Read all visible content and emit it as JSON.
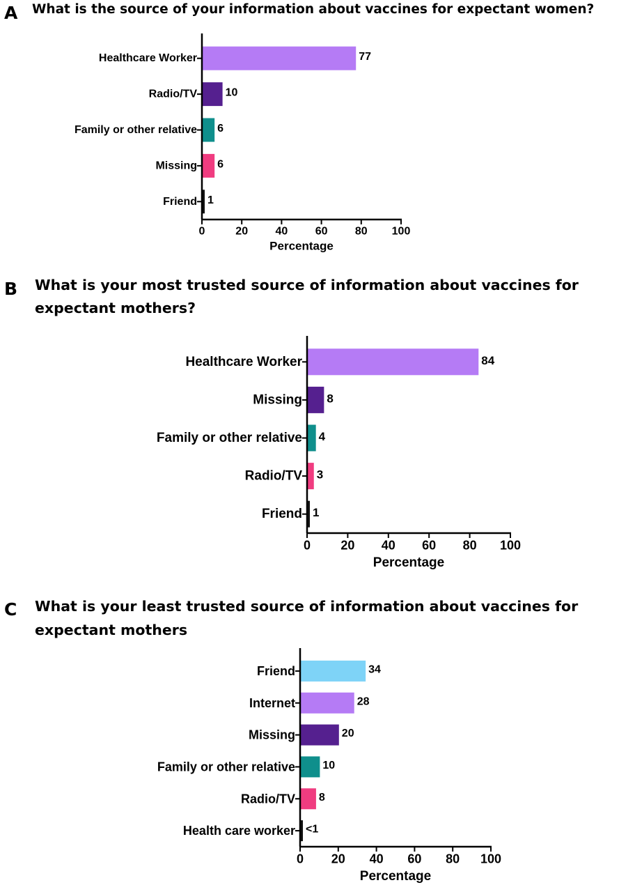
{
  "panels": [
    {
      "letter": "A",
      "title_lines": [
        "What is the source of your information about vaccines for expectant women?"
      ],
      "chart_data": {
        "type": "bar",
        "orientation": "horizontal",
        "categories": [
          "Healthcare Worker",
          "Radio/TV",
          "Family or other relative",
          "Missing",
          "Friend"
        ],
        "values": [
          77,
          10,
          6,
          6,
          1
        ],
        "value_labels": [
          "77",
          "10",
          "6",
          "6",
          "1"
        ],
        "colors": [
          "#b57bf5",
          "#55208f",
          "#0f8f8c",
          "#f03c80",
          "#111111"
        ],
        "xlabel": "Percentage",
        "xlim": [
          0,
          100
        ],
        "xticks": [
          0,
          20,
          40,
          60,
          80,
          100
        ],
        "grid": false,
        "legend": "none"
      }
    },
    {
      "letter": "B",
      "title_lines": [
        "What is your most trusted source of information about vaccines for",
        "expectant mothers?"
      ],
      "chart_data": {
        "type": "bar",
        "orientation": "horizontal",
        "categories": [
          "Healthcare Worker",
          "Missing",
          "Family or other relative",
          "Radio/TV",
          "Friend"
        ],
        "values": [
          84,
          8,
          4,
          3,
          1
        ],
        "value_labels": [
          "84",
          "8",
          "4",
          "3",
          "1"
        ],
        "colors": [
          "#b57bf5",
          "#55208f",
          "#0f8f8c",
          "#f03c80",
          "#111111"
        ],
        "xlabel": "Percentage",
        "xlim": [
          0,
          100
        ],
        "xticks": [
          0,
          20,
          40,
          60,
          80,
          100
        ],
        "grid": false,
        "legend": "none"
      }
    },
    {
      "letter": "C",
      "title_lines": [
        "What is your least trusted source of information about vaccines for",
        "expectant mothers"
      ],
      "chart_data": {
        "type": "bar",
        "orientation": "horizontal",
        "categories": [
          "Friend",
          "Internet",
          "Missing",
          "Family or other relative",
          "Radio/TV",
          "Health care worker"
        ],
        "values": [
          34,
          28,
          20,
          10,
          8,
          0.5
        ],
        "value_labels": [
          "34",
          "28",
          "20",
          "10",
          "8",
          "<1"
        ],
        "colors": [
          "#7ed3f7",
          "#b57bf5",
          "#55208f",
          "#0f8f8c",
          "#f03c80",
          "#111111"
        ],
        "xlabel": "Percentage",
        "xlim": [
          0,
          100
        ],
        "xticks": [
          0,
          20,
          40,
          60,
          80,
          100
        ],
        "grid": false,
        "legend": "none"
      }
    }
  ]
}
